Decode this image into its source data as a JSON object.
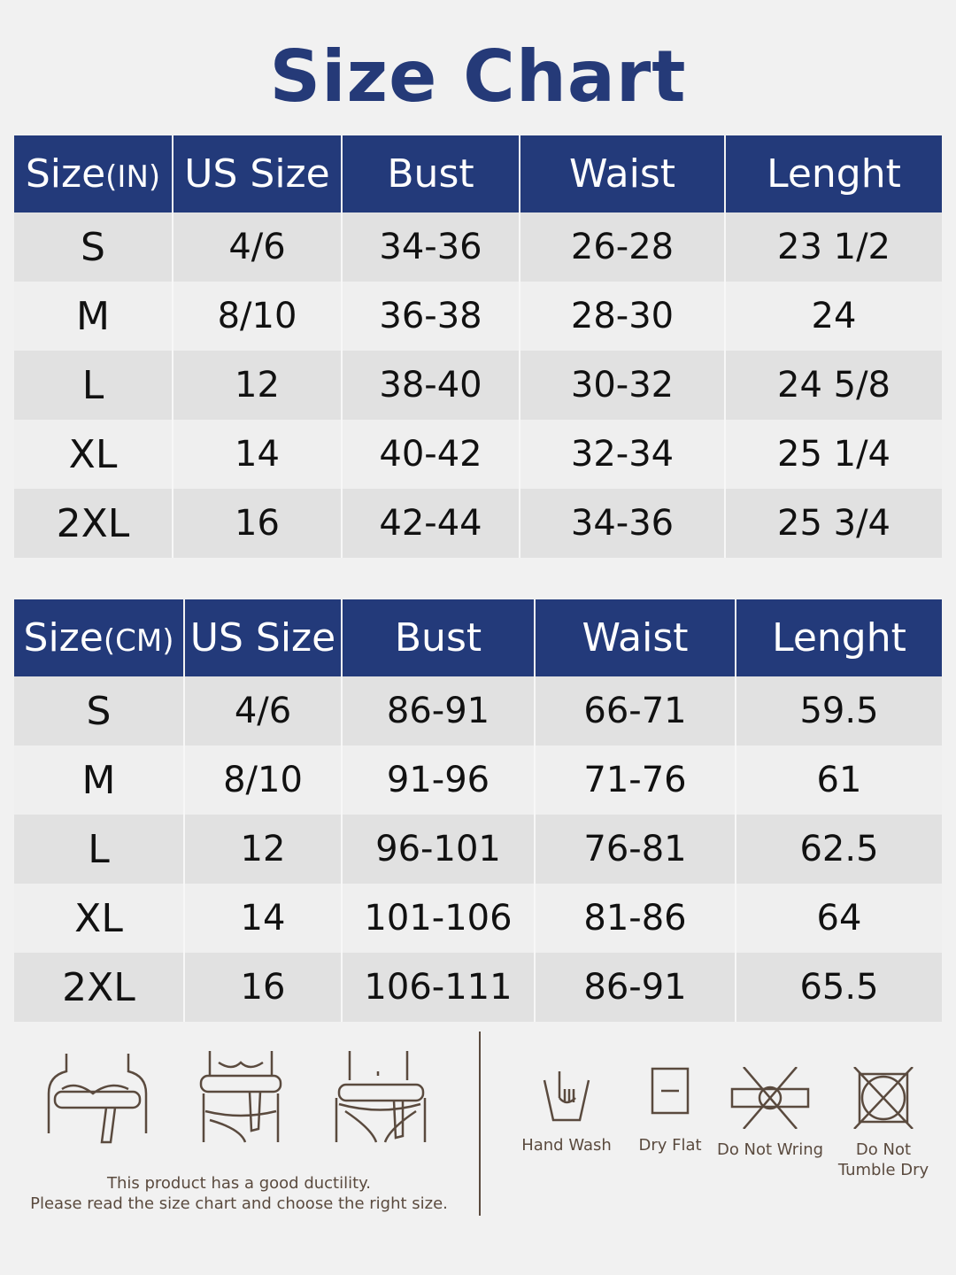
{
  "title": "Size Chart",
  "tables": [
    {
      "headers": [
        {
          "main": "Size",
          "unit": "(IN)"
        },
        {
          "main": "US Size"
        },
        {
          "main": "Bust"
        },
        {
          "main": "Waist"
        },
        {
          "main": "Lenght"
        }
      ],
      "rows": [
        [
          "S",
          "4/6",
          "34-36",
          "26-28",
          "23 1/2"
        ],
        [
          "M",
          "8/10",
          "36-38",
          "28-30",
          "24"
        ],
        [
          "L",
          "12",
          "38-40",
          "30-32",
          "24 5/8"
        ],
        [
          "XL",
          "14",
          "40-42",
          "32-34",
          "25 1/4"
        ],
        [
          "2XL",
          "16",
          "42-44",
          "34-36",
          "25 3/4"
        ]
      ]
    },
    {
      "headers": [
        {
          "main": "Size",
          "unit": "(CM)"
        },
        {
          "main": "US Size"
        },
        {
          "main": "Bust"
        },
        {
          "main": "Waist"
        },
        {
          "main": "Lenght"
        }
      ],
      "rows": [
        [
          "S",
          "4/6",
          "86-91",
          "66-71",
          "59.5"
        ],
        [
          "M",
          "8/10",
          "91-96",
          "71-76",
          "61"
        ],
        [
          "L",
          "12",
          "96-101",
          "76-81",
          "62.5"
        ],
        [
          "XL",
          "14",
          "101-106",
          "81-86",
          "64"
        ],
        [
          "2XL",
          "16",
          "106-111",
          "86-91",
          "65.5"
        ]
      ]
    }
  ],
  "note": [
    "This product has a good ductility.",
    "Please read the size chart and choose the right size."
  ],
  "care": [
    {
      "icon": "hand-wash-icon",
      "label": "Hand Wash"
    },
    {
      "icon": "dry-flat-icon",
      "label": "Dry Flat"
    },
    {
      "icon": "do-not-wring-icon",
      "label": "Do Not Wring"
    },
    {
      "icon": "do-not-tumble-dry-icon",
      "label": "Do Not Tumble Dry"
    }
  ],
  "colors": {
    "header": "#233a7a",
    "title": "#253a78",
    "icons": "#5a4a3e"
  }
}
